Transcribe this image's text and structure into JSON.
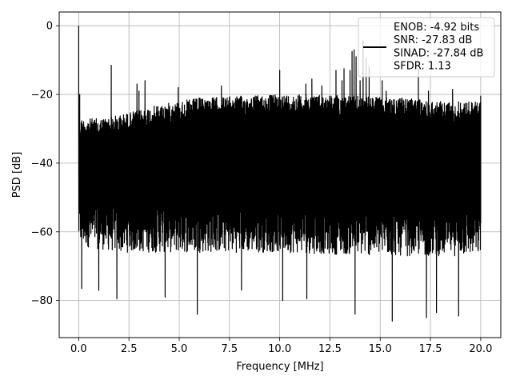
{
  "chart_data": {
    "type": "line",
    "xlabel": "Frequency [MHz]",
    "ylabel": "PSD [dB]",
    "xlim": [
      -0.97,
      21.0
    ],
    "ylim": [
      -90.8,
      4.0
    ],
    "grid": true,
    "x_ticks": [
      0.0,
      2.5,
      5.0,
      7.5,
      10.0,
      12.5,
      15.0,
      17.5,
      20.0
    ],
    "x_tick_labels": [
      "0.0",
      "2.5",
      "5.0",
      "7.5",
      "10.0",
      "12.5",
      "15.0",
      "17.5",
      "20.0"
    ],
    "y_ticks": [
      0,
      -20,
      -40,
      -60,
      -80
    ],
    "y_tick_labels": [
      "0",
      "−20",
      "−40",
      "−60",
      "−80"
    ],
    "legend": {
      "placement": "top-right",
      "lines": [
        "ENOB: -4.92 bits",
        "SNR: -27.83 dB",
        "SINAD: -27.84 dB",
        "SFDR: 1.13"
      ]
    },
    "series": [
      {
        "color": "#000000",
        "x_range": [
          0.0,
          20.0
        ],
        "upper_envelope": {
          "x": [
            0.0,
            1.0,
            2.0,
            4.0,
            6.0,
            8.0,
            10.0,
            12.0,
            14.0,
            16.0,
            18.0,
            20.0
          ],
          "y": [
            -27,
            -27,
            -26,
            -23,
            -21,
            -20.5,
            -20,
            -20,
            -20.5,
            -21,
            -22,
            -22
          ]
        },
        "lower_envelope": {
          "x": [
            0.0,
            2.0,
            5.0,
            10.0,
            15.0,
            20.0
          ],
          "y": [
            -64,
            -66,
            -66,
            -66,
            -67,
            -67
          ]
        },
        "peaks": [
          {
            "x": 0.0,
            "y": 0.0
          },
          {
            "x": 0.05,
            "y": -20
          },
          {
            "x": 1.62,
            "y": -11.5
          },
          {
            "x": 2.9,
            "y": -17
          },
          {
            "x": 3.0,
            "y": -19
          },
          {
            "x": 3.3,
            "y": -16
          },
          {
            "x": 4.95,
            "y": -18
          },
          {
            "x": 7.1,
            "y": -17.5
          },
          {
            "x": 10.0,
            "y": -13
          },
          {
            "x": 11.3,
            "y": -17
          },
          {
            "x": 11.6,
            "y": -15.5
          },
          {
            "x": 12.1,
            "y": -17.5
          },
          {
            "x": 12.8,
            "y": -13
          },
          {
            "x": 13.1,
            "y": -16
          },
          {
            "x": 13.2,
            "y": -12.5
          },
          {
            "x": 13.5,
            "y": -13
          },
          {
            "x": 13.6,
            "y": -7.5
          },
          {
            "x": 13.7,
            "y": -7
          },
          {
            "x": 13.8,
            "y": -9
          },
          {
            "x": 14.0,
            "y": -16
          },
          {
            "x": 14.15,
            "y": -4.5
          },
          {
            "x": 14.3,
            "y": -9.5
          },
          {
            "x": 14.45,
            "y": -12
          },
          {
            "x": 15.1,
            "y": -16
          },
          {
            "x": 15.3,
            "y": -19
          },
          {
            "x": 16.9,
            "y": -12.5
          },
          {
            "x": 17.4,
            "y": -19
          },
          {
            "x": 18.6,
            "y": -18.5
          },
          {
            "x": 20.0,
            "y": -20.5
          }
        ],
        "dips": [
          {
            "x": 0.15,
            "y": -76.5
          },
          {
            "x": 1.0,
            "y": -77
          },
          {
            "x": 1.9,
            "y": -79.5
          },
          {
            "x": 4.3,
            "y": -79
          },
          {
            "x": 5.9,
            "y": -84
          },
          {
            "x": 8.1,
            "y": -77
          },
          {
            "x": 10.15,
            "y": -80
          },
          {
            "x": 11.35,
            "y": -79.5
          },
          {
            "x": 13.75,
            "y": -84
          },
          {
            "x": 15.6,
            "y": -86
          },
          {
            "x": 17.8,
            "y": -83.5
          },
          {
            "x": 17.3,
            "y": -85
          },
          {
            "x": 18.9,
            "y": -84.5
          }
        ]
      }
    ]
  }
}
